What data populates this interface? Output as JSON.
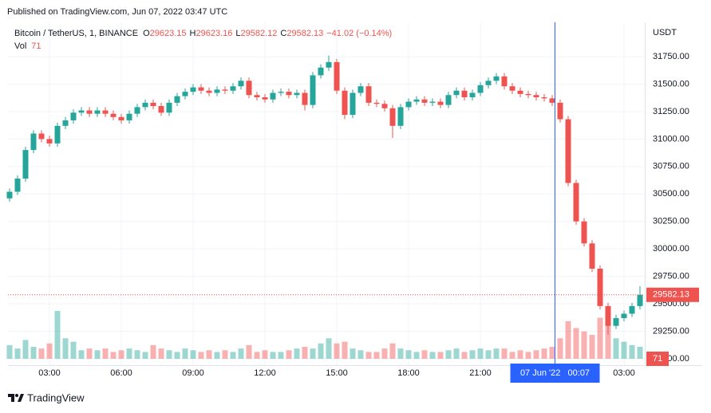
{
  "chart_data": {
    "type": "candlestick",
    "published": "Published on TradingView.com, Jun 07, 2022 03:47 UTC",
    "symbol": "Bitcoin / TetherUS, 1, BINANCE",
    "ohlc": [
      {
        "label": "O",
        "value": 29623.15
      },
      {
        "label": "H",
        "value": 29623.16
      },
      {
        "label": "L",
        "value": 29582.12
      },
      {
        "label": "C",
        "value": 29582.13
      }
    ],
    "change": {
      "value": -41.02,
      "label": "−41.02 (−0.14%)"
    },
    "volume_label": {
      "label": "Vol",
      "value": 71
    },
    "currency": "USDT",
    "last_price": {
      "value": 29582.13,
      "label": "29582.13"
    },
    "crosshair": {
      "x": 1447,
      "label": "07 Jun '22   00:07"
    },
    "brand": "TradingView",
    "up_color": "#26a69a",
    "down_color": "#ef5350",
    "crosshair_color": "#2962ff",
    "grid": true,
    "xlim": [
      76,
      1672
    ],
    "ylim": [
      28942,
      32062
    ],
    "xticks": [
      {
        "value": 180,
        "label": "03:00"
      },
      {
        "value": 360,
        "label": "06:00"
      },
      {
        "value": 540,
        "label": "09:00"
      },
      {
        "value": 720,
        "label": "12:00"
      },
      {
        "value": 900,
        "label": "15:00"
      },
      {
        "value": 1080,
        "label": "18:00"
      },
      {
        "value": 1260,
        "label": "21:00"
      },
      {
        "value": 1620,
        "label": "03:00"
      }
    ],
    "yticks": [
      {
        "value": 29000,
        "label": "29000.00"
      },
      {
        "value": 29250,
        "label": "29250.00"
      },
      {
        "value": 29500,
        "label": "29500.00"
      },
      {
        "value": 29750,
        "label": "29750.00"
      },
      {
        "value": 30000,
        "label": "30000.00"
      },
      {
        "value": 30250,
        "label": "30250.00"
      },
      {
        "value": 30500,
        "label": "30500.00"
      },
      {
        "value": 30750,
        "label": "30750.00"
      },
      {
        "value": 31000,
        "label": "31000.00"
      },
      {
        "value": 31250,
        "label": "31250.00"
      },
      {
        "value": 31500,
        "label": "31500.00"
      },
      {
        "value": 31750,
        "label": "31750.00"
      }
    ],
    "x": [
      80,
      100,
      120,
      140,
      160,
      180,
      200,
      220,
      240,
      260,
      280,
      300,
      320,
      340,
      360,
      380,
      400,
      420,
      440,
      460,
      480,
      500,
      520,
      540,
      560,
      580,
      600,
      620,
      640,
      660,
      680,
      700,
      720,
      740,
      760,
      780,
      800,
      820,
      840,
      860,
      880,
      900,
      920,
      940,
      960,
      980,
      1000,
      1020,
      1040,
      1060,
      1080,
      1100,
      1120,
      1140,
      1160,
      1180,
      1200,
      1220,
      1240,
      1260,
      1280,
      1300,
      1320,
      1340,
      1360,
      1380,
      1400,
      1420,
      1440,
      1460,
      1480,
      1500,
      1520,
      1540,
      1560,
      1580,
      1600,
      1620,
      1640,
      1660
    ],
    "open": [
      30460,
      30520,
      30640,
      30900,
      31050,
      31000,
      30960,
      31120,
      31170,
      31240,
      31260,
      31230,
      31260,
      31230,
      31200,
      31170,
      31230,
      31290,
      31330,
      31300,
      31240,
      31330,
      31390,
      31430,
      31470,
      31440,
      31420,
      31450,
      31440,
      31480,
      31530,
      31400,
      31380,
      31360,
      31420,
      31430,
      31400,
      31420,
      31310,
      31580,
      31650,
      31700,
      31440,
      31220,
      31420,
      31480,
      31330,
      31320,
      31280,
      31120,
      31290,
      31340,
      31360,
      31330,
      31340,
      31310,
      31400,
      31440,
      31380,
      31420,
      31490,
      31530,
      31570,
      31480,
      31440,
      31410,
      31400,
      31380,
      31370,
      31330,
      31180,
      30600,
      30250,
      30050,
      29820,
      29480,
      29300,
      29370,
      29410,
      29480
    ],
    "high": [
      30550,
      30670,
      30930,
      31080,
      31080,
      31030,
      31150,
      31200,
      31270,
      31290,
      31290,
      31290,
      31290,
      31260,
      31230,
      31260,
      31320,
      31360,
      31360,
      31330,
      31360,
      31420,
      31460,
      31500,
      31500,
      31470,
      31480,
      31480,
      31510,
      31560,
      31560,
      31430,
      31410,
      31450,
      31460,
      31460,
      31450,
      31450,
      31610,
      31680,
      31760,
      31730,
      31470,
      31450,
      31510,
      31510,
      31360,
      31350,
      31310,
      31320,
      31370,
      31390,
      31390,
      31370,
      31370,
      31430,
      31470,
      31470,
      31450,
      31520,
      31560,
      31600,
      31600,
      31510,
      31470,
      31440,
      31430,
      31410,
      31400,
      31360,
      31210,
      30630,
      30280,
      30080,
      29850,
      29510,
      29400,
      29440,
      29510,
      29660
    ],
    "low": [
      30430,
      30490,
      30610,
      30870,
      30970,
      30930,
      30930,
      31090,
      31140,
      31210,
      31200,
      31200,
      31200,
      31170,
      31140,
      31140,
      31200,
      31260,
      31270,
      31210,
      31210,
      31300,
      31360,
      31400,
      31410,
      31390,
      31390,
      31410,
      31410,
      31450,
      31370,
      31350,
      31330,
      31330,
      31390,
      31370,
      31370,
      31260,
      31280,
      31550,
      31620,
      31410,
      31180,
      31190,
      31390,
      31300,
      31290,
      31250,
      31010,
      31090,
      31260,
      31310,
      31300,
      31300,
      31280,
      31280,
      31370,
      31350,
      31350,
      31390,
      31460,
      31500,
      31450,
      31410,
      31380,
      31370,
      31350,
      31340,
      31300,
      31150,
      30570,
      30220,
      30020,
      29790,
      29450,
      29220,
      29270,
      29340,
      29380,
      29450
    ],
    "close": [
      30520,
      30640,
      30900,
      31050,
      31000,
      30960,
      31120,
      31170,
      31240,
      31260,
      31230,
      31260,
      31230,
      31200,
      31170,
      31230,
      31290,
      31330,
      31300,
      31240,
      31330,
      31390,
      31430,
      31470,
      31440,
      31420,
      31450,
      31440,
      31480,
      31530,
      31400,
      31380,
      31360,
      31420,
      31430,
      31400,
      31420,
      31310,
      31580,
      31650,
      31700,
      31440,
      31220,
      31420,
      31480,
      31330,
      31320,
      31280,
      31120,
      31290,
      31340,
      31360,
      31330,
      31340,
      31310,
      31400,
      31440,
      31380,
      31420,
      31490,
      31530,
      31570,
      31480,
      31440,
      31410,
      31400,
      31380,
      31370,
      31330,
      31180,
      30600,
      30250,
      30050,
      29820,
      29480,
      29300,
      29370,
      29410,
      29480,
      29582.13
    ],
    "volume": [
      40,
      30,
      55,
      35,
      30,
      45,
      140,
      60,
      50,
      25,
      30,
      25,
      30,
      20,
      25,
      30,
      25,
      20,
      40,
      30,
      25,
      20,
      30,
      25,
      20,
      25,
      20,
      25,
      20,
      30,
      40,
      20,
      25,
      20,
      20,
      25,
      30,
      35,
      30,
      45,
      60,
      45,
      50,
      30,
      25,
      20,
      20,
      30,
      45,
      30,
      25,
      20,
      25,
      20,
      20,
      25,
      30,
      20,
      25,
      30,
      25,
      30,
      30,
      20,
      25,
      20,
      25,
      30,
      35,
      60,
      110,
      90,
      80,
      70,
      120,
      100,
      60,
      50,
      40,
      35
    ]
  }
}
